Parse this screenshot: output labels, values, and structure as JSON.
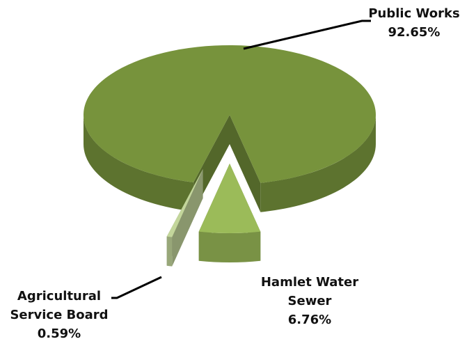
{
  "chart_data": {
    "type": "pie",
    "categories": [
      "Public Works",
      "Hamlet Water Sewer",
      "Agricultural Service Board"
    ],
    "values": [
      92.65,
      6.76,
      0.59
    ],
    "value_labels": [
      "92.65%",
      "6.76%",
      "0.59%"
    ],
    "colors": [
      "#77933c",
      "#9bbb59",
      "#c3d69b"
    ]
  }
}
